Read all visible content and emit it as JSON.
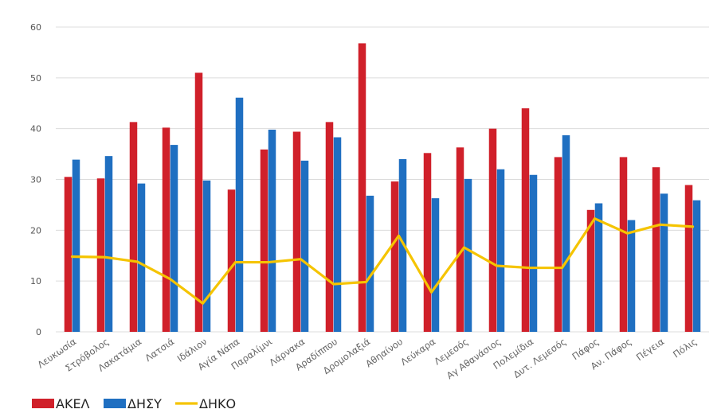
{
  "chart_data": {
    "type": "bar",
    "title": "",
    "xlabel": "",
    "ylabel": "",
    "ylim": [
      0,
      60
    ],
    "yticks": [
      0,
      10,
      20,
      30,
      40,
      50,
      60
    ],
    "grid": true,
    "legend_position": "bottom-left",
    "categories": [
      "Λευκωσία",
      "Στρόβολος",
      "Λακατάμια",
      "Λατσιά",
      "Ιδάλιον",
      "Αγία Νάπα",
      "Παραλίμνι",
      "Λάρνακα",
      "Αραδίππου",
      "Δρομολαξιά",
      "Αθηαίνου",
      "Λεύκαρα",
      "Λεμεσός",
      "Αγ Αθανάσιος",
      "Πολεμίδια",
      "Δυτ. Λεμεσός",
      "Πάφος",
      "Αν. Πάφος",
      "Πέγεια",
      "Πόλις"
    ],
    "series": [
      {
        "name": "ΑΚΕΛ",
        "type": "bar",
        "color": "#d0202a",
        "values": [
          30.5,
          30.2,
          41.3,
          40.2,
          51.0,
          28.0,
          35.9,
          39.4,
          41.3,
          56.8,
          29.6,
          35.2,
          36.3,
          40.0,
          44.0,
          34.4,
          24.0,
          34.4,
          32.4,
          28.9
        ]
      },
      {
        "name": "ΔΗΣΥ",
        "type": "bar",
        "color": "#1f6fc1",
        "values": [
          33.9,
          34.6,
          29.2,
          36.8,
          29.8,
          46.1,
          39.8,
          33.7,
          38.3,
          26.8,
          34.0,
          26.3,
          30.1,
          32.0,
          30.9,
          38.7,
          25.3,
          22.0,
          27.2,
          25.9
        ]
      },
      {
        "name": "ΔΗΚΟ",
        "type": "line",
        "color": "#f5c400",
        "values": [
          14.8,
          14.7,
          13.8,
          10.4,
          5.6,
          13.7,
          13.7,
          14.3,
          9.4,
          9.8,
          18.9,
          7.8,
          16.6,
          13.0,
          12.6,
          12.6,
          22.3,
          19.4,
          21.1,
          20.7
        ]
      }
    ]
  }
}
